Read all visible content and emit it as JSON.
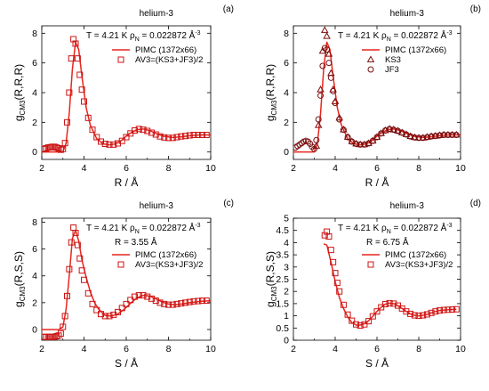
{
  "style": {
    "line_color": "#e8251e",
    "marker_color": "#cc1414",
    "marker_color_dark": "#7a0f0f",
    "axis_color": "#000000"
  },
  "chart_data": [
    {
      "type": "line",
      "panel_label": "(a)",
      "title": "helium-3",
      "annotation": "T = 4.21 K",
      "density": {
        "symbol": "ρ",
        "sub": "N",
        "text": " = 0.022872 Å",
        "sup": "-3"
      },
      "extra_annotation": "",
      "xlabel": "R / Å",
      "ylabel": {
        "main": "g",
        "sub": "CM3",
        "tail": "(R,R,R)"
      },
      "xlim": [
        2,
        10
      ],
      "ylim": [
        -0.5,
        8.5
      ],
      "xticks": [
        2,
        4,
        6,
        8,
        10
      ],
      "yticks": [
        0,
        2,
        4,
        6,
        8
      ],
      "legend_position": "top-right",
      "series": [
        {
          "name": "PIMC (1372x66)",
          "kind": "line",
          "x": [
            2.0,
            3.0,
            3.15,
            3.3,
            3.45,
            3.6,
            3.75,
            3.9,
            4.1,
            4.3,
            4.6,
            4.9,
            5.2,
            5.5,
            5.8,
            6.1,
            6.5,
            6.8,
            7.1,
            7.5,
            7.8,
            8.2,
            8.6,
            9.0,
            9.5,
            10.0
          ],
          "y": [
            0,
            0,
            0.6,
            2.6,
            5.6,
            7.4,
            6.9,
            5.1,
            3.0,
            1.8,
            0.9,
            0.55,
            0.48,
            0.55,
            0.8,
            1.2,
            1.5,
            1.55,
            1.45,
            1.2,
            1.05,
            0.98,
            1.02,
            1.1,
            1.15,
            1.15
          ]
        },
        {
          "name": "AV3=(KS3+JF3)/2",
          "kind": "markers",
          "marker": "square",
          "x": [
            2.1,
            2.2,
            2.3,
            2.4,
            2.5,
            2.6,
            2.7,
            2.8,
            2.9,
            3.0,
            3.1,
            3.2,
            3.3,
            3.4,
            3.5,
            3.6,
            3.7,
            3.8,
            3.9,
            4.0,
            4.2,
            4.4,
            4.6,
            4.8,
            5.0,
            5.2,
            5.4,
            5.6,
            5.8,
            6.0,
            6.2,
            6.4,
            6.6,
            6.8,
            7.0,
            7.2,
            7.4,
            7.6,
            7.8,
            8.0,
            8.2,
            8.4,
            8.6,
            8.8,
            9.0,
            9.2,
            9.4,
            9.6,
            9.8
          ],
          "y": [
            0.2,
            0.25,
            0.3,
            0.32,
            0.35,
            0.35,
            0.3,
            0.25,
            0.15,
            0.2,
            0.6,
            2.0,
            4.0,
            6.3,
            7.6,
            7.3,
            6.3,
            5.2,
            4.2,
            3.4,
            2.3,
            1.5,
            1.0,
            0.7,
            0.55,
            0.5,
            0.5,
            0.58,
            0.75,
            1.0,
            1.25,
            1.45,
            1.55,
            1.5,
            1.42,
            1.3,
            1.18,
            1.05,
            0.98,
            0.95,
            0.95,
            1.0,
            1.05,
            1.08,
            1.12,
            1.15,
            1.15,
            1.15,
            1.15
          ]
        }
      ]
    },
    {
      "type": "line",
      "panel_label": "(b)",
      "title": "helium-3",
      "annotation": "T = 4.21 K",
      "density": {
        "symbol": "ρ",
        "sub": "N",
        "text": " = 0.022872 Å",
        "sup": "-3"
      },
      "extra_annotation": "",
      "xlabel": "R / Å",
      "ylabel": {
        "main": "g",
        "sub": "CM3",
        "tail": "(R,R,R)"
      },
      "xlim": [
        2,
        10
      ],
      "ylim": [
        -0.5,
        8.5
      ],
      "xticks": [
        2,
        4,
        6,
        8,
        10
      ],
      "yticks": [
        0,
        2,
        4,
        6,
        8
      ],
      "legend_position": "top-right",
      "series": [
        {
          "name": "PIMC (1372x66)",
          "kind": "line",
          "x": [
            2.0,
            3.0,
            3.15,
            3.3,
            3.45,
            3.6,
            3.75,
            3.9,
            4.1,
            4.3,
            4.6,
            4.9,
            5.2,
            5.5,
            5.8,
            6.1,
            6.5,
            6.8,
            7.1,
            7.5,
            7.8,
            8.2,
            8.6,
            9.0,
            9.5,
            10.0
          ],
          "y": [
            0,
            0,
            0.6,
            2.6,
            5.6,
            7.4,
            6.9,
            5.1,
            3.0,
            1.8,
            0.9,
            0.55,
            0.48,
            0.55,
            0.8,
            1.2,
            1.5,
            1.55,
            1.45,
            1.2,
            1.05,
            0.98,
            1.02,
            1.1,
            1.15,
            1.15
          ]
        },
        {
          "name": "KS3",
          "kind": "markers",
          "marker": "triangle",
          "x": [
            3.1,
            3.2,
            3.3,
            3.4,
            3.5,
            3.6,
            3.7,
            3.8,
            3.9,
            4.0,
            4.2,
            4.4,
            4.6,
            4.8,
            5.0,
            5.2,
            5.4,
            5.6,
            5.8,
            6.0,
            6.2,
            6.4,
            6.6,
            6.8,
            7.0,
            7.2,
            7.4,
            7.6,
            7.8,
            8.0,
            8.2,
            8.4,
            8.6,
            8.8,
            9.0,
            9.2,
            9.4,
            9.6,
            9.8
          ],
          "y": [
            0.4,
            1.8,
            4.2,
            6.8,
            8.2,
            7.8,
            6.6,
            5.3,
            4.2,
            3.4,
            2.3,
            1.5,
            1.0,
            0.7,
            0.55,
            0.5,
            0.5,
            0.58,
            0.75,
            1.0,
            1.25,
            1.45,
            1.55,
            1.5,
            1.42,
            1.3,
            1.18,
            1.05,
            0.98,
            0.95,
            0.95,
            1.0,
            1.05,
            1.08,
            1.12,
            1.15,
            1.15,
            1.15,
            1.15
          ]
        },
        {
          "name": "JF3",
          "kind": "markers",
          "marker": "circle",
          "x": [
            2.1,
            2.2,
            2.3,
            2.4,
            2.5,
            2.6,
            2.7,
            2.8,
            2.9,
            3.0,
            3.1,
            3.2,
            3.3,
            3.4,
            3.5,
            3.6,
            3.7,
            3.8,
            3.9,
            4.0,
            4.2,
            4.4,
            4.6,
            4.8,
            5.0,
            5.2,
            5.4,
            5.6,
            5.8,
            6.0,
            6.2,
            6.4,
            6.6,
            6.8,
            7.0,
            7.2,
            7.4,
            7.6,
            7.8,
            8.0,
            8.2,
            8.4,
            8.6,
            8.8,
            9.0,
            9.2,
            9.4,
            9.6,
            9.8
          ],
          "y": [
            0.3,
            0.4,
            0.5,
            0.6,
            0.7,
            0.75,
            0.7,
            0.55,
            0.35,
            0.2,
            0.8,
            2.2,
            3.8,
            5.8,
            7.0,
            6.9,
            6.0,
            5.0,
            4.1,
            3.3,
            2.2,
            1.5,
            1.0,
            0.7,
            0.55,
            0.5,
            0.5,
            0.58,
            0.75,
            1.0,
            1.25,
            1.45,
            1.55,
            1.5,
            1.42,
            1.3,
            1.18,
            1.05,
            0.98,
            0.95,
            0.95,
            1.0,
            1.05,
            1.08,
            1.12,
            1.15,
            1.15,
            1.15,
            1.15
          ]
        }
      ]
    },
    {
      "type": "line",
      "panel_label": "(c)",
      "title": "helium-3",
      "annotation": "T = 4.21 K",
      "density": {
        "symbol": "ρ",
        "sub": "N",
        "text": " = 0.022872 Å",
        "sup": "-3"
      },
      "extra_annotation": "R = 3.55 Å",
      "xlabel": "S / Å",
      "ylabel": {
        "main": "g",
        "sub": "CM3",
        "tail": "(R,S,S)"
      },
      "xlim": [
        2,
        10
      ],
      "ylim": [
        -0.8,
        8.3
      ],
      "xticks": [
        2,
        4,
        6,
        8,
        10
      ],
      "yticks": [
        0,
        2,
        4,
        6,
        8
      ],
      "legend_position": "top-right",
      "series": [
        {
          "name": "PIMC (1372x66)",
          "kind": "line",
          "x": [
            2.0,
            2.8,
            3.0,
            3.15,
            3.3,
            3.45,
            3.6,
            3.75,
            3.9,
            4.1,
            4.3,
            4.5,
            4.7,
            5.0,
            5.3,
            5.6,
            5.9,
            6.2,
            6.5,
            6.8,
            7.1,
            7.4,
            7.7,
            8.0,
            8.3,
            8.6,
            9.0,
            9.5,
            10.0
          ],
          "y": [
            0,
            0,
            0.2,
            1.5,
            4.0,
            6.8,
            7.4,
            6.6,
            5.2,
            3.9,
            2.8,
            2.0,
            1.5,
            1.05,
            1.0,
            1.15,
            1.5,
            1.95,
            2.35,
            2.55,
            2.5,
            2.3,
            2.05,
            1.9,
            1.85,
            1.9,
            2.0,
            2.1,
            2.15
          ]
        },
        {
          "name": "AV3=(KS3+JF3)/2",
          "kind": "markers",
          "marker": "square",
          "x": [
            2.1,
            2.2,
            2.3,
            2.4,
            2.5,
            2.6,
            2.7,
            2.8,
            2.9,
            3.0,
            3.1,
            3.2,
            3.3,
            3.4,
            3.5,
            3.6,
            3.7,
            3.8,
            3.9,
            4.0,
            4.2,
            4.4,
            4.6,
            4.8,
            5.0,
            5.2,
            5.4,
            5.6,
            5.8,
            6.0,
            6.2,
            6.4,
            6.6,
            6.8,
            7.0,
            7.2,
            7.4,
            7.6,
            7.8,
            8.0,
            8.2,
            8.4,
            8.6,
            8.8,
            9.0,
            9.2,
            9.4,
            9.6,
            9.8
          ],
          "y": [
            -0.55,
            -0.55,
            -0.55,
            -0.55,
            -0.55,
            -0.55,
            -0.5,
            -0.45,
            -0.3,
            0.2,
            1.0,
            2.5,
            4.5,
            6.5,
            7.6,
            7.2,
            6.3,
            5.3,
            4.4,
            3.7,
            2.7,
            1.9,
            1.45,
            1.15,
            1.0,
            1.0,
            1.1,
            1.3,
            1.6,
            1.9,
            2.2,
            2.45,
            2.55,
            2.55,
            2.45,
            2.3,
            2.15,
            2.0,
            1.9,
            1.85,
            1.85,
            1.9,
            1.95,
            2.0,
            2.05,
            2.1,
            2.12,
            2.15,
            2.15
          ]
        }
      ]
    },
    {
      "type": "line",
      "panel_label": "(d)",
      "title": "helium-3",
      "annotation": "T = 4.21 K",
      "density": {
        "symbol": "ρ",
        "sub": "N",
        "text": " = 0.022872 Å",
        "sup": "-3"
      },
      "extra_annotation": "R = 6.75 Å",
      "xlabel": "S / Å",
      "ylabel": {
        "main": "g",
        "sub": "CM3",
        "tail": "(R,S,S)"
      },
      "xlim": [
        2,
        10
      ],
      "ylim": [
        0,
        5
      ],
      "xticks": [
        2,
        4,
        6,
        8,
        10
      ],
      "yticks": [
        0,
        0.5,
        1,
        1.5,
        2,
        2.5,
        3,
        3.5,
        4,
        4.5,
        5
      ],
      "legend_position": "top-right",
      "series": [
        {
          "name": "PIMC (1372x66)",
          "kind": "line",
          "x": [
            3.45,
            3.6,
            3.8,
            4.0,
            4.2,
            4.4,
            4.6,
            4.8,
            5.0,
            5.2,
            5.4,
            5.6,
            5.8,
            6.0,
            6.2,
            6.4,
            6.6,
            6.8,
            7.0,
            7.2,
            7.4,
            7.6,
            7.8,
            8.0,
            8.2,
            8.4,
            8.6,
            8.8,
            9.0,
            9.4,
            9.8
          ],
          "y": [
            3.95,
            3.9,
            3.2,
            2.4,
            1.75,
            1.3,
            0.95,
            0.72,
            0.62,
            0.62,
            0.68,
            0.8,
            0.98,
            1.18,
            1.35,
            1.48,
            1.52,
            1.5,
            1.42,
            1.3,
            1.18,
            1.08,
            1.02,
            1.0,
            1.02,
            1.06,
            1.12,
            1.18,
            1.22,
            1.25,
            1.27
          ]
        },
        {
          "name": "AV3=(KS3+JF3)/2",
          "kind": "markers",
          "marker": "square",
          "x": [
            3.5,
            3.6,
            3.7,
            3.8,
            3.9,
            4.0,
            4.1,
            4.2,
            4.4,
            4.6,
            4.8,
            5.0,
            5.2,
            5.4,
            5.6,
            5.8,
            6.0,
            6.2,
            6.4,
            6.6,
            6.8,
            7.0,
            7.2,
            7.4,
            7.6,
            7.8,
            8.0,
            8.2,
            8.4,
            8.6,
            8.8,
            9.0,
            9.2,
            9.4,
            9.6,
            9.8
          ],
          "y": [
            4.3,
            4.45,
            4.25,
            3.7,
            3.2,
            2.75,
            2.35,
            2.0,
            1.45,
            1.05,
            0.8,
            0.65,
            0.6,
            0.65,
            0.78,
            0.98,
            1.18,
            1.35,
            1.48,
            1.52,
            1.5,
            1.42,
            1.3,
            1.18,
            1.08,
            1.02,
            1.0,
            1.02,
            1.06,
            1.12,
            1.18,
            1.22,
            1.24,
            1.25,
            1.26,
            1.27
          ]
        }
      ]
    }
  ]
}
